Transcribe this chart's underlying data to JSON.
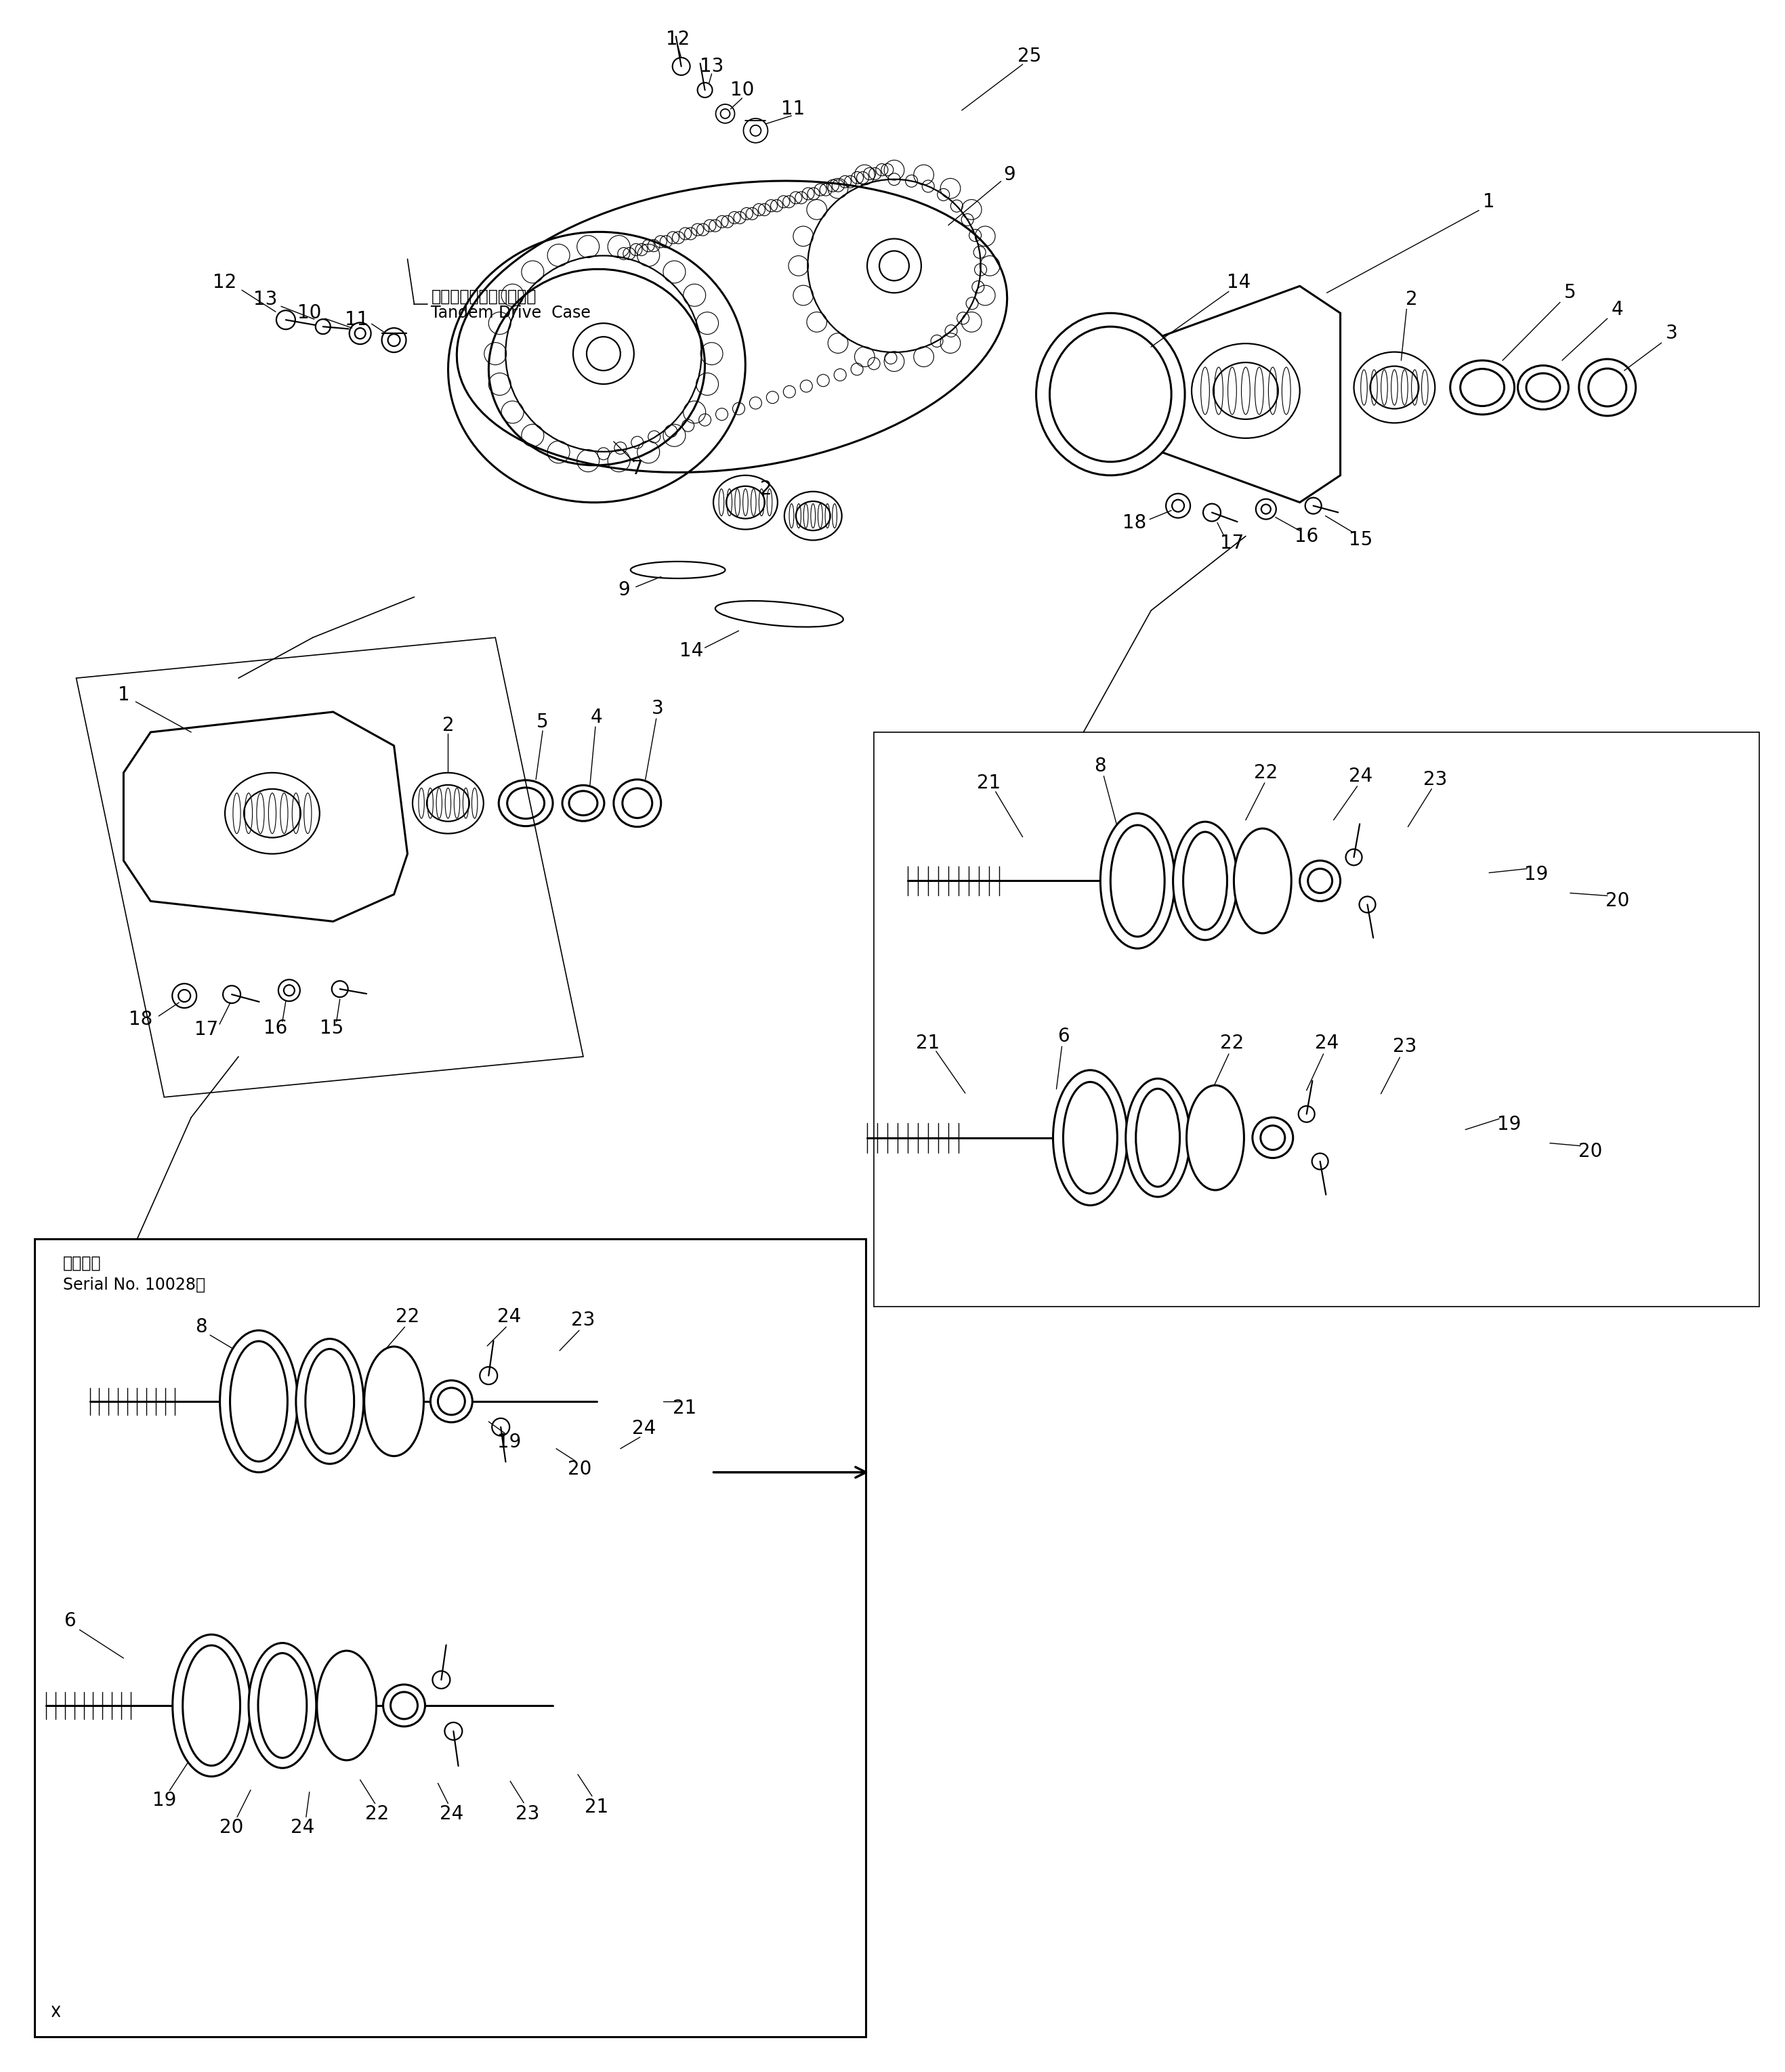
{
  "background_color": "#ffffff",
  "line_color": "#000000",
  "figure_width": 26.35,
  "figure_height": 30.59,
  "label_fontsize": 20,
  "small_fontsize": 17,
  "japanese_text_1": "タンデムドライブケース",
  "japanese_text_2": "Tandem Drive  Case",
  "serial_text_1": "適用号機",
  "serial_text_2": "Serial No. 10028～"
}
